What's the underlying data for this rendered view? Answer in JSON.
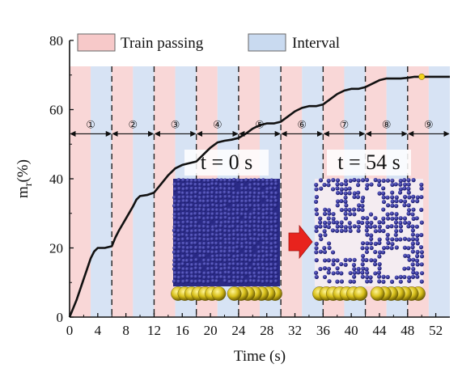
{
  "chart_data": {
    "type": "line",
    "xlabel": "Time (s)",
    "ylabel_main": "m",
    "ylabel_sub": "r",
    "ylabel_unit": "(%)",
    "xlim": [
      0,
      54
    ],
    "ylim": [
      0,
      80
    ],
    "x_ticks": [
      0,
      4,
      8,
      12,
      16,
      20,
      24,
      28,
      32,
      36,
      40,
      44,
      48,
      52
    ],
    "y_ticks": [
      0,
      20,
      40,
      60,
      80
    ],
    "grid": false,
    "legend_position": "top",
    "legend": [
      {
        "label": "Train passing",
        "color": "#f7c9c9"
      },
      {
        "label": "Interval",
        "color": "#c9daf0"
      }
    ],
    "phases": [
      {
        "start": 0,
        "end": 3,
        "kind": "train"
      },
      {
        "start": 3,
        "end": 6,
        "kind": "interval"
      },
      {
        "start": 6,
        "end": 9,
        "kind": "train"
      },
      {
        "start": 9,
        "end": 12,
        "kind": "interval"
      },
      {
        "start": 12,
        "end": 15,
        "kind": "train"
      },
      {
        "start": 15,
        "end": 18,
        "kind": "interval"
      },
      {
        "start": 18,
        "end": 21,
        "kind": "train"
      },
      {
        "start": 21,
        "end": 24,
        "kind": "interval"
      },
      {
        "start": 24,
        "end": 27,
        "kind": "train"
      },
      {
        "start": 27,
        "end": 30,
        "kind": "interval"
      },
      {
        "start": 30,
        "end": 33,
        "kind": "train"
      },
      {
        "start": 33,
        "end": 36,
        "kind": "interval"
      },
      {
        "start": 36,
        "end": 39,
        "kind": "train"
      },
      {
        "start": 39,
        "end": 42,
        "kind": "interval"
      },
      {
        "start": 42,
        "end": 45,
        "kind": "train"
      },
      {
        "start": 45,
        "end": 48,
        "kind": "interval"
      },
      {
        "start": 48,
        "end": 51,
        "kind": "train"
      },
      {
        "start": 51,
        "end": 54,
        "kind": "interval"
      }
    ],
    "cycle_boundaries": [
      6,
      12,
      18,
      24,
      30,
      36,
      42,
      48
    ],
    "cycles": [
      {
        "label": "①",
        "start": 0,
        "end": 6
      },
      {
        "label": "②",
        "start": 6,
        "end": 12
      },
      {
        "label": "③",
        "start": 12,
        "end": 18
      },
      {
        "label": "④",
        "start": 18,
        "end": 24
      },
      {
        "label": "⑤",
        "start": 24,
        "end": 30
      },
      {
        "label": "⑥",
        "start": 30,
        "end": 36
      },
      {
        "label": "⑦",
        "start": 36,
        "end": 42
      },
      {
        "label": "⑧",
        "start": 42,
        "end": 48
      },
      {
        "label": "⑨",
        "start": 48,
        "end": 54
      }
    ],
    "cycle_arrow_y": 53,
    "series": [
      {
        "color": "#111111",
        "x": [
          0,
          0.5,
          1,
          1.5,
          2,
          2.5,
          3,
          3.5,
          4,
          5,
          6,
          6.5,
          7,
          8,
          9,
          9.5,
          10,
          11,
          12,
          13,
          14,
          15,
          15.5,
          16,
          17,
          18,
          19,
          20,
          21,
          22,
          23,
          24,
          25,
          26,
          27,
          28,
          29,
          30,
          31,
          32,
          33,
          34,
          35,
          36,
          37,
          38,
          39,
          40,
          41,
          42,
          43,
          44,
          45,
          46,
          47,
          48,
          49,
          50,
          51,
          52,
          53,
          54
        ],
        "y": [
          0,
          2.5,
          5,
          8,
          11,
          14,
          17,
          19,
          20,
          20,
          20.5,
          23,
          25,
          28.5,
          32,
          34,
          35,
          35.3,
          36,
          38.5,
          41,
          43,
          43.5,
          44,
          44.5,
          45,
          47,
          49,
          50.5,
          51,
          51.3,
          51.8,
          53,
          54.5,
          55.5,
          56,
          56,
          56.5,
          58,
          59.5,
          60.5,
          61,
          61,
          61.5,
          63,
          64.5,
          65.5,
          66,
          66,
          66.5,
          67.5,
          68.5,
          69,
          69,
          69,
          69.2,
          69.5,
          69.5,
          69.5,
          69.5,
          69.5,
          69.5
        ]
      }
    ],
    "highlight_point": {
      "x": 50,
      "y": 69.5,
      "color": "#f2d21b"
    },
    "insets": [
      {
        "label": "t = 0 s"
      },
      {
        "label": "t = 54 s"
      }
    ],
    "transition_arrow_color": "#e8231d"
  }
}
